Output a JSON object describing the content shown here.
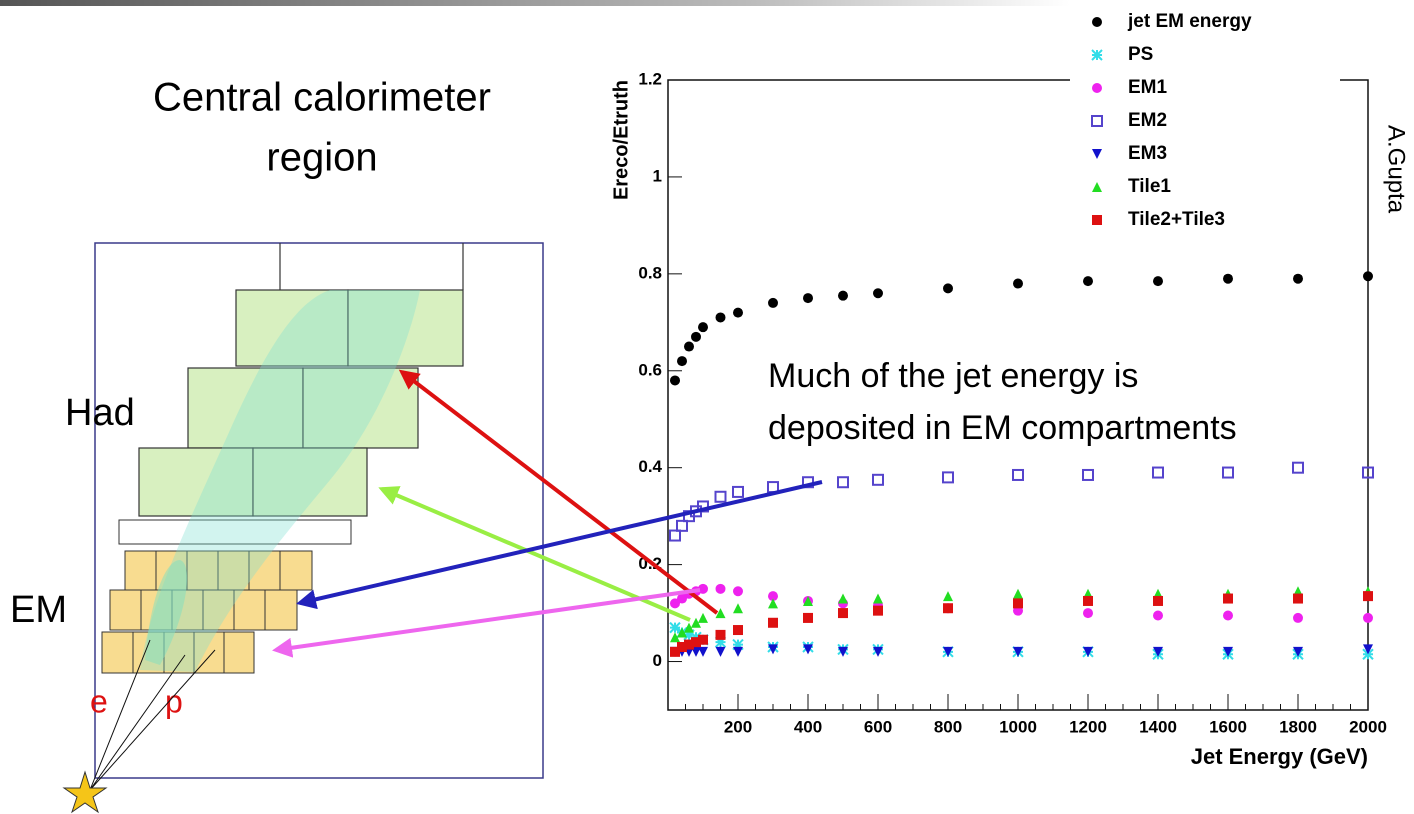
{
  "chart_data": {
    "type": "scatter",
    "y_label": "Ereco/Etruth",
    "x_label": "Jet Energy (GeV)",
    "side_label": "A.Gupta",
    "annotation": [
      "Much of the jet energy is",
      "deposited in EM compartments"
    ],
    "xlim": [
      0,
      2000
    ],
    "ylim": [
      -0.1,
      1.2
    ],
    "xticks": [
      200,
      400,
      600,
      800,
      1000,
      1200,
      1400,
      1600,
      1800,
      2000
    ],
    "yticks": [
      0,
      0.2,
      0.4,
      0.6,
      0.8,
      1,
      1.2
    ],
    "x": [
      20,
      40,
      60,
      80,
      100,
      150,
      200,
      300,
      400,
      500,
      600,
      800,
      1000,
      1200,
      1400,
      1600,
      1800,
      2000
    ],
    "series": [
      {
        "name": "jet EM energy",
        "color": "#000000",
        "marker": "circle",
        "values": [
          0.58,
          0.62,
          0.65,
          0.67,
          0.69,
          0.71,
          0.72,
          0.74,
          0.75,
          0.755,
          0.76,
          0.77,
          0.78,
          0.785,
          0.785,
          0.79,
          0.79,
          0.795
        ]
      },
      {
        "name": "PS",
        "color": "#33dde8",
        "marker": "star",
        "values": [
          0.07,
          0.06,
          0.055,
          0.05,
          0.045,
          0.04,
          0.035,
          0.03,
          0.03,
          0.025,
          0.025,
          0.02,
          0.02,
          0.02,
          0.015,
          0.015,
          0.015,
          0.015
        ]
      },
      {
        "name": "EM1",
        "color": "#ee22ee",
        "marker": "circle",
        "values": [
          0.12,
          0.13,
          0.14,
          0.145,
          0.15,
          0.15,
          0.145,
          0.135,
          0.125,
          0.12,
          0.115,
          0.11,
          0.105,
          0.1,
          0.095,
          0.095,
          0.09,
          0.09
        ]
      },
      {
        "name": "EM2",
        "color": "#5544cc",
        "marker": "open-square",
        "values": [
          0.26,
          0.28,
          0.3,
          0.31,
          0.32,
          0.34,
          0.35,
          0.36,
          0.37,
          0.37,
          0.375,
          0.38,
          0.385,
          0.385,
          0.39,
          0.39,
          0.4,
          0.39
        ]
      },
      {
        "name": "EM3",
        "color": "#1111cc",
        "marker": "triangle-down",
        "values": [
          0.02,
          0.02,
          0.02,
          0.02,
          0.02,
          0.02,
          0.02,
          0.025,
          0.025,
          0.02,
          0.02,
          0.02,
          0.02,
          0.02,
          0.02,
          0.02,
          0.02,
          0.025
        ]
      },
      {
        "name": "Tile1",
        "color": "#22dd22",
        "marker": "triangle-up",
        "values": [
          0.05,
          0.06,
          0.07,
          0.08,
          0.09,
          0.1,
          0.11,
          0.12,
          0.125,
          0.13,
          0.13,
          0.135,
          0.14,
          0.14,
          0.14,
          0.14,
          0.145,
          0.145
        ]
      },
      {
        "name": "Tile2+Tile3",
        "color": "#dd1111",
        "marker": "square",
        "values": [
          0.02,
          0.03,
          0.035,
          0.04,
          0.045,
          0.055,
          0.065,
          0.08,
          0.09,
          0.1,
          0.105,
          0.11,
          0.12,
          0.125,
          0.125,
          0.13,
          0.13,
          0.135
        ]
      }
    ]
  },
  "diagram": {
    "title": [
      "Central calorimeter",
      "region"
    ],
    "had": "Had",
    "em": "EM",
    "e": "e",
    "p": "p"
  }
}
